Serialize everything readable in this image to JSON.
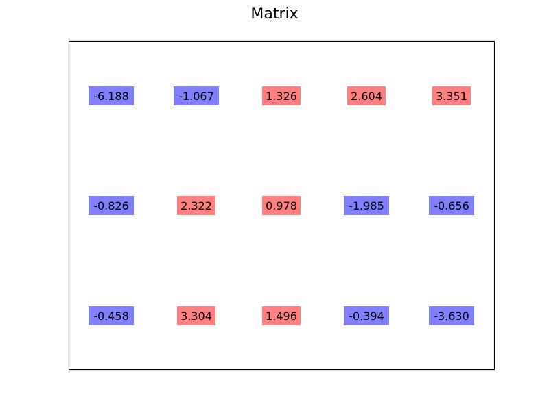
{
  "chart_data": {
    "type": "table",
    "title": "Matrix",
    "rows": [
      [
        -6.188,
        -1.067,
        1.326,
        2.604,
        3.351
      ],
      [
        -0.826,
        2.322,
        0.978,
        -1.985,
        -0.656
      ],
      [
        -0.458,
        3.304,
        1.496,
        -0.394,
        -3.63
      ]
    ],
    "labels": [
      [
        "-6.188",
        "-1.067",
        "1.326",
        "2.604",
        "3.351"
      ],
      [
        "-0.826",
        "2.322",
        "0.978",
        "-1.985",
        "-0.656"
      ],
      [
        "-0.458",
        "3.304",
        "1.496",
        "-0.394",
        "-3.630"
      ]
    ],
    "colors": {
      "negative": "#8080ff",
      "positive": "#ff8080"
    },
    "grid": false,
    "axes_ticks": false
  }
}
